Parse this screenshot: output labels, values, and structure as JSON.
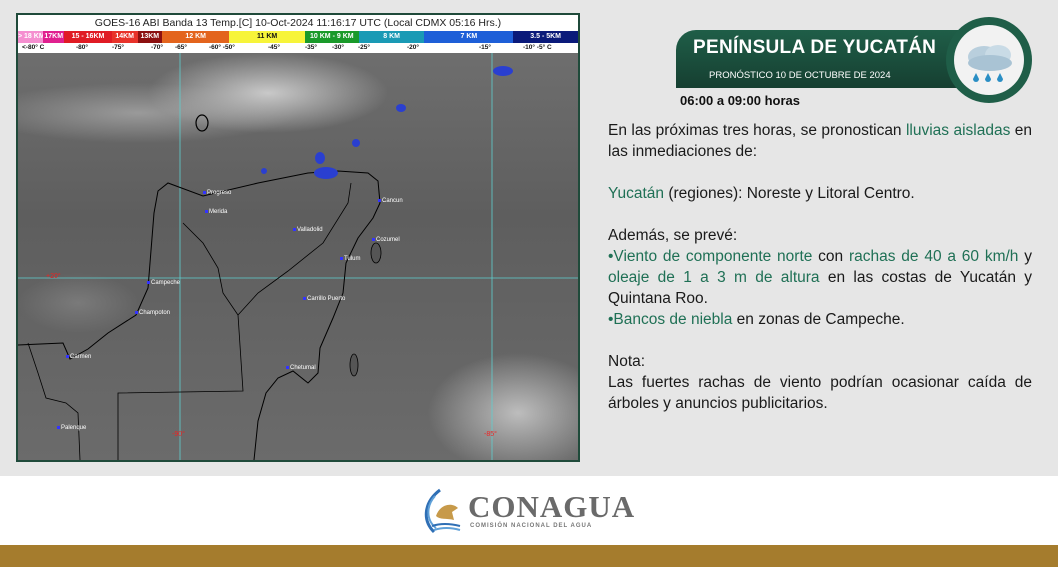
{
  "map": {
    "title": "GOES-16 ABI Banda 13 Temp.[C] 10-Oct-2024 11:16:17 UTC (Local CDMX  05:16 Hrs.)",
    "scale": [
      {
        "label": "> 18 KM",
        "color": "#f58fd0"
      },
      {
        "label": "17KM",
        "color": "#e0208f"
      },
      {
        "label": "15 - 16KM",
        "color": "#e01b24"
      },
      {
        "label": "14KM",
        "color": "#e8322a"
      },
      {
        "label": "13KM",
        "color": "#8c1010"
      },
      {
        "label": "12 KM",
        "color": "#e3641d"
      },
      {
        "label": "11 KM",
        "color": "#f7f43a"
      },
      {
        "label": "10 KM - 9 KM",
        "color": "#1a9a2a"
      },
      {
        "label": "8 KM",
        "color": "#1a9ab5"
      },
      {
        "label": "7 KM",
        "color": "#1e5fd8"
      },
      {
        "label": "3.5 - 5KM",
        "color": "#0a1a7a"
      }
    ],
    "temps": [
      "<-80° C",
      "-80°",
      "-75°",
      "-70°",
      "-65°",
      "-60°  -50°",
      "-45°",
      "-35°",
      "-30°",
      "-25°",
      "-20°",
      "-15°",
      "-10°   -5°  C"
    ],
    "cities": [
      "Progreso",
      "Merida",
      "Valladolid",
      "Cancun",
      "Cozumel",
      "Tulum",
      "Campeche",
      "Champoton",
      "Carrillo Puerto",
      "Carmen",
      "Chetumal",
      "Palenque"
    ],
    "degrees": [
      "+20°",
      "-90°",
      "-85°"
    ]
  },
  "banner": {
    "title": "PENÍNSULA DE YUCATÁN",
    "subtitle": "PRONÓSTICO 10 DE OCTUBRE DE 2024",
    "icon": "cloud-rain-icon"
  },
  "hours": "06:00 a 09:00 horas",
  "forecast": {
    "p1a": "En las próximas tres horas, se pronostican ",
    "p1b": "lluvias aisladas",
    "p1c": " en las inmediaciones de:",
    "p2a": "Yucatán",
    "p2b": " (regiones): Noreste y Litoral Centro.",
    "p3": "Además, se prevé:",
    "l1a": "•Viento de componente norte",
    "l1b": " con ",
    "l1c": "rachas de 40 a 60 km/h",
    "l1d": " y ",
    "l1e": "oleaje de 1 a 3 m de altura",
    "l1f": " en las costas de Yucatán y Quintana Roo.",
    "l2a": "•Bancos de niebla",
    "l2b": " en zonas de Campeche.",
    "nota": "Nota:",
    "nota_text": "Las fuertes rachas de viento podrían ocasionar caída de árboles y anuncios publicitarios."
  },
  "logo": {
    "name": "CONAGUA",
    "subtitle": "COMISIÓN NACIONAL DEL AGUA"
  },
  "colors": {
    "accent": "#1f7055",
    "banner": "#1f5e48",
    "gold": "#a57c2d"
  }
}
